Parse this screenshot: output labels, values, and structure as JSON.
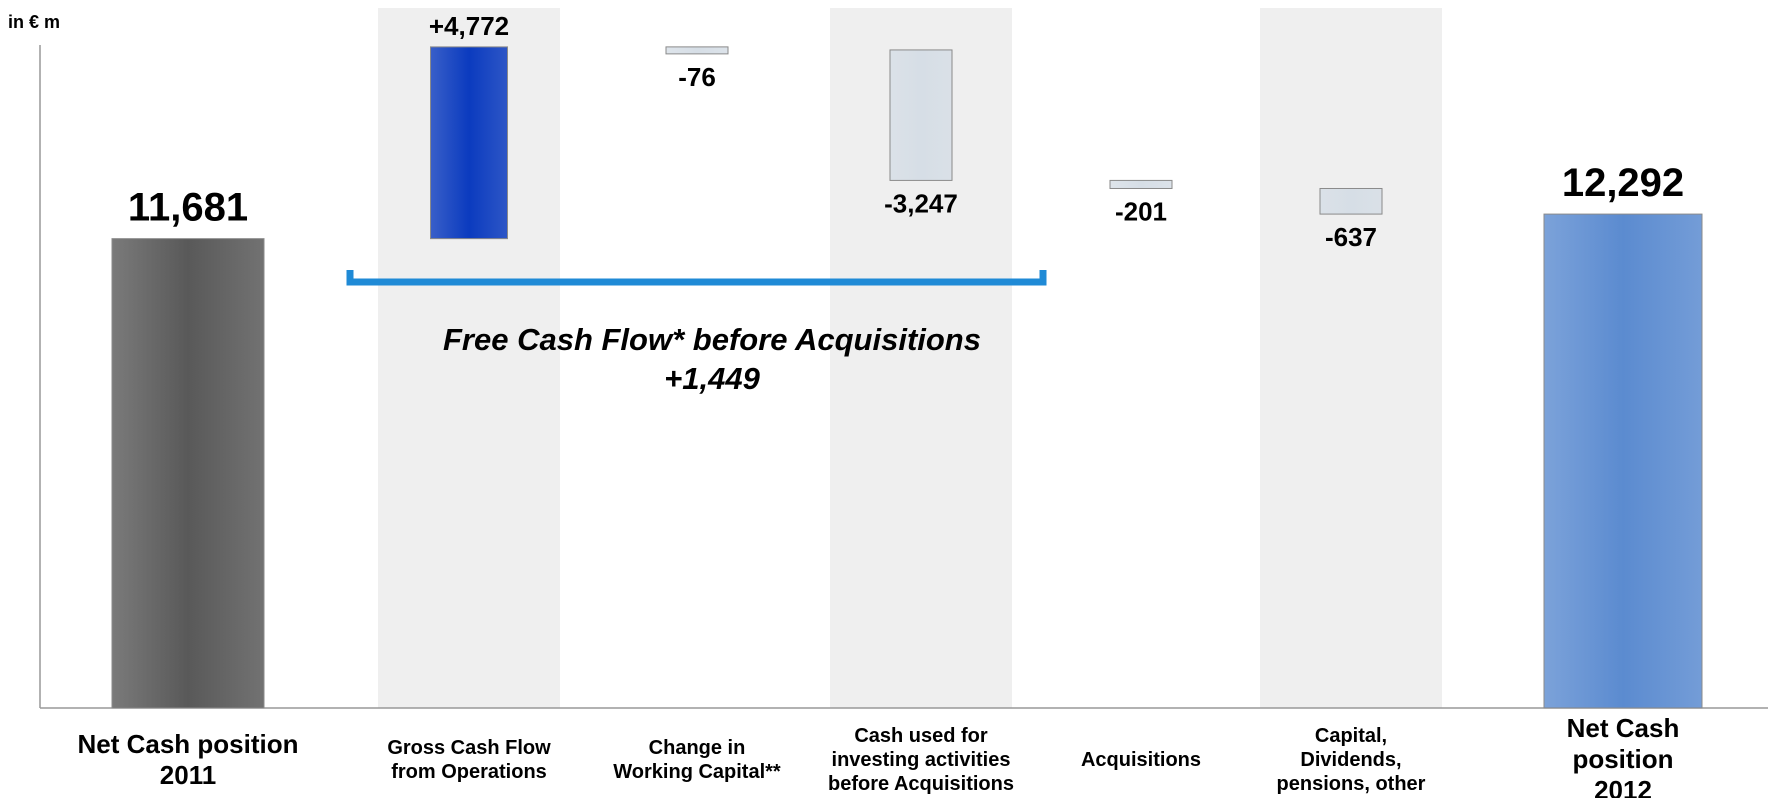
{
  "chart_data": {
    "type": "waterfall",
    "unit_label": "in € m",
    "categories": [
      "Net Cash position\n2011",
      "Gross Cash Flow\nfrom Operations",
      "Change in\nWorking Capital**",
      "Cash used for\ninvesting activities\nbefore Acquisitions",
      "Acquisitions",
      "Capital,\nDividends,\npensions, other",
      "Net Cash position\n2012"
    ],
    "values": [
      11681,
      4772,
      -76,
      -3247,
      -201,
      -637,
      12292
    ],
    "value_labels": [
      "11,681",
      "+4,772",
      "-76",
      "-3,247",
      "-201",
      "-637",
      "12,292"
    ],
    "totals": [
      true,
      false,
      false,
      false,
      false,
      false,
      true
    ],
    "colors": [
      "#595959",
      "#0b3bbf",
      "#d6dee6",
      "#d6dee6",
      "#d6dee6",
      "#d6dee6",
      "#5b8bd0"
    ],
    "ylim": [
      0,
      16500
    ],
    "annotation": {
      "text": "Free Cash Flow* before Acquisitions",
      "value": 1449,
      "label": "+1,449"
    }
  }
}
